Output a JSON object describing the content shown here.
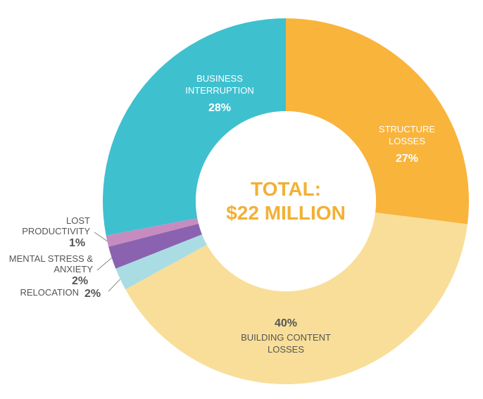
{
  "chart_data": {
    "type": "pie",
    "center_label": [
      "TOTAL:",
      "$22 MILLION"
    ],
    "slices": [
      {
        "label": [
          "STRUCTURE",
          "LOSSES"
        ],
        "pct_text": "27%",
        "value": 27,
        "color": "#F9B43C"
      },
      {
        "label": [
          "BUILDING CONTENT",
          "LOSSES"
        ],
        "pct_text": "40%",
        "value": 40,
        "color": "#F8DE98"
      },
      {
        "label": [
          "RELOCATION"
        ],
        "pct_text": "2%",
        "value": 2,
        "color": "#A9DDE3"
      },
      {
        "label": [
          "MENTAL STRESS &",
          "ANXIETY"
        ],
        "pct_text": "2%",
        "value": 2,
        "color": "#8B62B0"
      },
      {
        "label": [
          "LOST",
          "PRODUCTIVITY"
        ],
        "pct_text": "1%",
        "value": 1,
        "color": "#C68CC0"
      },
      {
        "label": [
          "BUSINESS",
          "INTERRUPTION"
        ],
        "pct_text": "28%",
        "value": 28,
        "color": "#3FC0CF"
      }
    ],
    "colors": {
      "center_text": "#F2B035",
      "outside_label": "#555555",
      "inside_label": "#ffffff"
    }
  }
}
